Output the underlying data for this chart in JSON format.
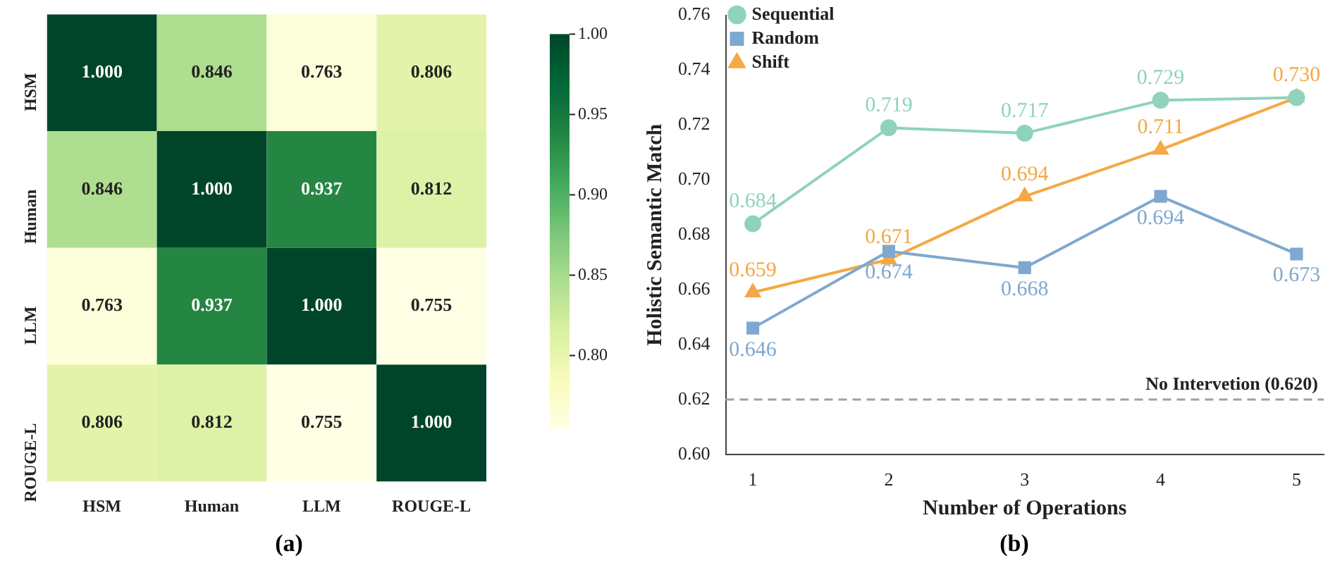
{
  "chart_data": [
    {
      "type": "heatmap",
      "categories": [
        "HSM",
        "Human",
        "LLM",
        "ROUGE-L"
      ],
      "y_categories": [
        "HSM",
        "Human",
        "LLM",
        "ROUGE-L"
      ],
      "cells": [
        [
          1.0,
          0.846,
          0.763,
          0.806
        ],
        [
          0.846,
          1.0,
          0.937,
          0.812
        ],
        [
          0.763,
          0.937,
          1.0,
          0.755
        ],
        [
          0.806,
          0.812,
          0.755,
          1.0
        ]
      ],
      "cell_labels": [
        [
          "1.000",
          "0.846",
          "0.763",
          "0.806"
        ],
        [
          "0.846",
          "1.000",
          "0.937",
          "0.812"
        ],
        [
          "0.763",
          "0.937",
          "1.000",
          "0.755"
        ],
        [
          "0.806",
          "0.812",
          "0.755",
          "1.000"
        ]
      ],
      "clim": [
        0.755,
        1.0
      ],
      "cticks": [
        {
          "value": 0.8,
          "label": "0.80"
        },
        {
          "value": 0.85,
          "label": "0.85"
        },
        {
          "value": 0.9,
          "label": "0.90"
        },
        {
          "value": 0.95,
          "label": "0.95"
        },
        {
          "value": 1.0,
          "label": "1.00"
        }
      ],
      "annotations": [
        "(a)"
      ]
    },
    {
      "type": "line",
      "x": [
        1,
        2,
        3,
        4,
        5
      ],
      "xlabel": "Number of Operations",
      "ylabel": "Holistic Semantic Match",
      "series": [
        {
          "name": "Sequential",
          "color": "#8fd3bd",
          "marker": "circle",
          "values": [
            0.684,
            0.719,
            0.717,
            0.729,
            0.73
          ],
          "value_labels": [
            "0.684",
            "0.719",
            "0.717",
            "0.729",
            null
          ]
        },
        {
          "name": "Random",
          "color": "#7ea8cf",
          "marker": "square",
          "values": [
            0.646,
            0.674,
            0.668,
            0.694,
            0.673
          ],
          "value_labels": [
            "0.646",
            "0.674",
            "0.668",
            "0.694",
            "0.673"
          ]
        },
        {
          "name": "Shift",
          "color": "#f5a844",
          "marker": "triangle",
          "values": [
            0.659,
            0.671,
            0.694,
            0.711,
            0.73
          ],
          "value_labels": [
            "0.659",
            "0.671",
            "0.694",
            "0.711",
            "0.730"
          ]
        }
      ],
      "xlim": [
        0.8,
        5.2
      ],
      "xticks": [
        1,
        2,
        3,
        4,
        5
      ],
      "ylim": [
        0.6,
        0.76
      ],
      "yticks": [
        {
          "value": 0.6,
          "label": "0.60"
        },
        {
          "value": 0.62,
          "label": "0.62"
        },
        {
          "value": 0.64,
          "label": "0.64"
        },
        {
          "value": 0.66,
          "label": "0.66"
        },
        {
          "value": 0.68,
          "label": "0.68"
        },
        {
          "value": 0.7,
          "label": "0.70"
        },
        {
          "value": 0.72,
          "label": "0.72"
        },
        {
          "value": 0.74,
          "label": "0.74"
        },
        {
          "value": 0.76,
          "label": "0.76"
        }
      ],
      "ref_lines": [
        {
          "axis": "y",
          "value": 0.62,
          "label": "No Intervetion (0.620)",
          "color": "#a0a0a0",
          "line_style": "dashed"
        }
      ],
      "legend": "top left",
      "annotations": [
        "(b)"
      ]
    }
  ]
}
